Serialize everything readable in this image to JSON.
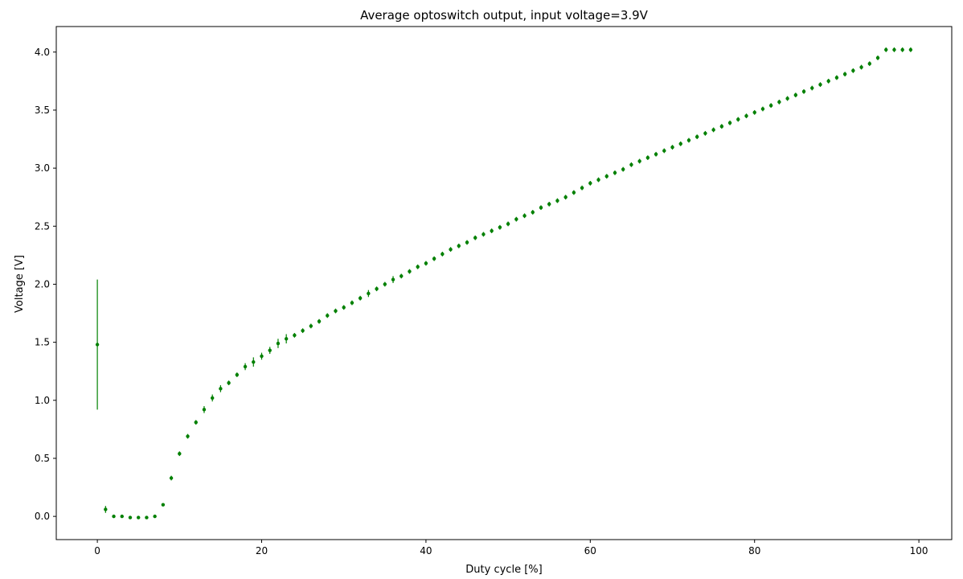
{
  "chart_data": {
    "type": "scatter",
    "title": "Average optoswitch output, input voltage=3.9V",
    "xlabel": "Duty cycle [%]",
    "ylabel": "Voltage [V]",
    "xlim": [
      -5,
      104
    ],
    "ylim": [
      -0.2,
      4.22
    ],
    "xticks": [
      0,
      20,
      40,
      60,
      80,
      100
    ],
    "xtick_labels": [
      "0",
      "20",
      "40",
      "60",
      "80",
      "100"
    ],
    "yticks": [
      0.0,
      0.5,
      1.0,
      1.5,
      2.0,
      2.5,
      3.0,
      3.5,
      4.0
    ],
    "ytick_labels": [
      "0.0",
      "0.5",
      "1.0",
      "1.5",
      "2.0",
      "2.5",
      "3.0",
      "3.5",
      "4.0"
    ],
    "grid": false,
    "color": "#008000",
    "marker": "dot with vertical error bars",
    "series": [
      {
        "x": [
          0,
          1,
          2,
          3,
          4,
          5,
          6,
          7,
          8,
          9,
          10,
          11,
          12,
          13,
          14,
          15,
          16,
          17,
          18,
          19,
          20,
          21,
          22,
          23,
          24,
          25,
          26,
          27,
          28,
          29,
          30,
          31,
          32,
          33,
          34,
          35,
          36,
          37,
          38,
          39,
          40,
          41,
          42,
          43,
          44,
          45,
          46,
          47,
          48,
          49,
          50,
          51,
          52,
          53,
          54,
          55,
          56,
          57,
          58,
          59,
          60,
          61,
          62,
          63,
          64,
          65,
          66,
          67,
          68,
          69,
          70,
          71,
          72,
          73,
          74,
          75,
          76,
          77,
          78,
          79,
          80,
          81,
          82,
          83,
          84,
          85,
          86,
          87,
          88,
          89,
          90,
          91,
          92,
          93,
          94,
          95,
          96,
          97,
          98,
          99
        ],
        "y": [
          1.48,
          0.06,
          0.0,
          0.0,
          -0.01,
          -0.01,
          -0.01,
          0.0,
          0.1,
          0.33,
          0.54,
          0.69,
          0.81,
          0.92,
          1.02,
          1.1,
          1.15,
          1.22,
          1.29,
          1.33,
          1.38,
          1.43,
          1.49,
          1.53,
          1.56,
          1.6,
          1.64,
          1.68,
          1.73,
          1.77,
          1.8,
          1.84,
          1.88,
          1.92,
          1.96,
          2.0,
          2.04,
          2.07,
          2.11,
          2.15,
          2.18,
          2.22,
          2.26,
          2.3,
          2.33,
          2.36,
          2.4,
          2.43,
          2.46,
          2.49,
          2.52,
          2.56,
          2.59,
          2.62,
          2.66,
          2.69,
          2.72,
          2.75,
          2.79,
          2.83,
          2.87,
          2.9,
          2.93,
          2.96,
          2.99,
          3.03,
          3.06,
          3.09,
          3.12,
          3.15,
          3.18,
          3.21,
          3.24,
          3.27,
          3.3,
          3.33,
          3.36,
          3.39,
          3.42,
          3.45,
          3.48,
          3.51,
          3.54,
          3.57,
          3.6,
          3.63,
          3.66,
          3.69,
          3.72,
          3.75,
          3.78,
          3.81,
          3.84,
          3.87,
          3.9,
          3.95,
          4.02,
          4.02,
          4.02,
          4.02
        ],
        "yerr": [
          0.56,
          0.03,
          0.01,
          0.01,
          0.01,
          0.01,
          0.01,
          0.01,
          0.01,
          0.02,
          0.02,
          0.02,
          0.02,
          0.03,
          0.03,
          0.03,
          0.02,
          0.02,
          0.03,
          0.04,
          0.03,
          0.03,
          0.04,
          0.04,
          0.02,
          0.02,
          0.02,
          0.02,
          0.02,
          0.02,
          0.02,
          0.02,
          0.02,
          0.03,
          0.02,
          0.02,
          0.03,
          0.02,
          0.02,
          0.02,
          0.02,
          0.02,
          0.02,
          0.02,
          0.02,
          0.02,
          0.02,
          0.02,
          0.02,
          0.02,
          0.02,
          0.02,
          0.02,
          0.02,
          0.02,
          0.02,
          0.02,
          0.02,
          0.02,
          0.02,
          0.02,
          0.02,
          0.02,
          0.02,
          0.02,
          0.02,
          0.02,
          0.02,
          0.02,
          0.02,
          0.02,
          0.02,
          0.02,
          0.02,
          0.02,
          0.02,
          0.02,
          0.02,
          0.02,
          0.02,
          0.02,
          0.02,
          0.02,
          0.02,
          0.02,
          0.02,
          0.02,
          0.02,
          0.02,
          0.02,
          0.02,
          0.02,
          0.02,
          0.02,
          0.02,
          0.02,
          0.02,
          0.02,
          0.02,
          0.02
        ]
      }
    ]
  }
}
